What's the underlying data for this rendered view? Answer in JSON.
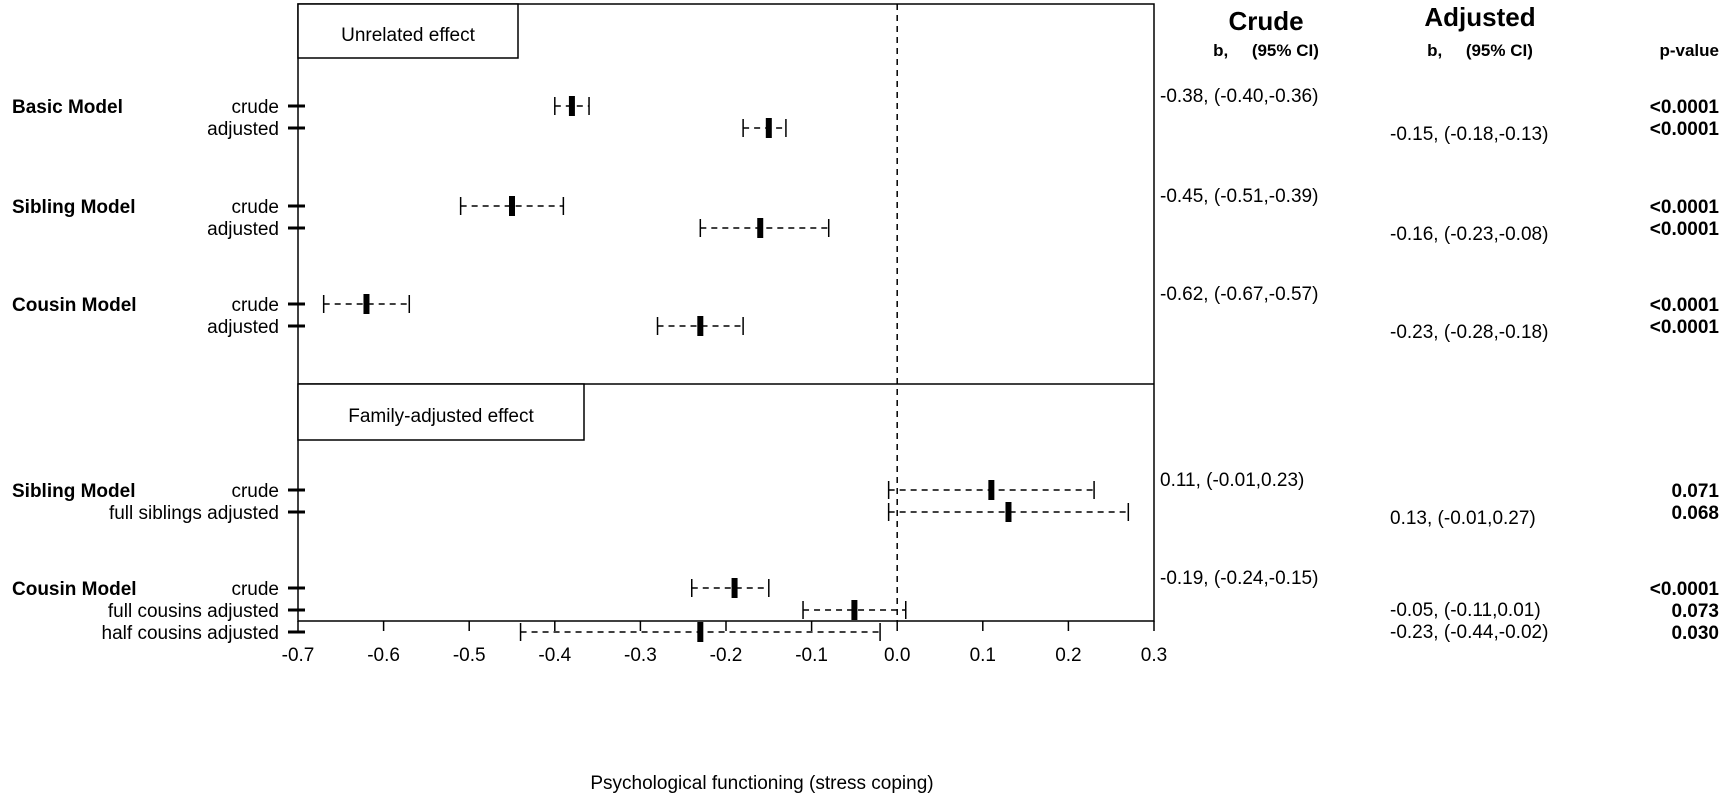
{
  "chart_data": {
    "type": "forest",
    "xlabel": "Psychological functioning (stress coping)",
    "xlim": [
      -0.7,
      0.3
    ],
    "xticks": [
      "-0.7",
      "-0.6",
      "-0.5",
      "-0.4",
      "-0.3",
      "-0.2",
      "-0.1",
      "0.0",
      "0.1",
      "0.2",
      "0.3"
    ],
    "reference_line": 0.0,
    "headers": {
      "crude_title": "Crude",
      "crude_sub": "b,     (95% CI)",
      "adjusted_title": "Adjusted",
      "adjusted_sub": "b,     (95% CI)",
      "pvalue": "p-value"
    },
    "panels": [
      {
        "title": "Unrelated effect",
        "groups": [
          {
            "label": "Basic Model",
            "rows": [
              {
                "label": "crude",
                "est": -0.38,
                "lo": -0.4,
                "hi": -0.36,
                "crude_text": "-0.38, (-0.40,-0.36)",
                "adjusted_text": "",
                "p": "<0.0001"
              },
              {
                "label": "adjusted",
                "est": -0.15,
                "lo": -0.18,
                "hi": -0.13,
                "crude_text": "",
                "adjusted_text": "-0.15, (-0.18,-0.13)",
                "p": "<0.0001"
              }
            ]
          },
          {
            "label": "Sibling Model",
            "rows": [
              {
                "label": "crude",
                "est": -0.45,
                "lo": -0.51,
                "hi": -0.39,
                "crude_text": "-0.45, (-0.51,-0.39)",
                "adjusted_text": "",
                "p": "<0.0001"
              },
              {
                "label": "adjusted",
                "est": -0.16,
                "lo": -0.23,
                "hi": -0.08,
                "crude_text": "",
                "adjusted_text": "-0.16, (-0.23,-0.08)",
                "p": "<0.0001"
              }
            ]
          },
          {
            "label": "Cousin Model",
            "rows": [
              {
                "label": "crude",
                "est": -0.62,
                "lo": -0.67,
                "hi": -0.57,
                "crude_text": "-0.62, (-0.67,-0.57)",
                "adjusted_text": "",
                "p": "<0.0001"
              },
              {
                "label": "adjusted",
                "est": -0.23,
                "lo": -0.28,
                "hi": -0.18,
                "crude_text": "",
                "adjusted_text": "-0.23, (-0.28,-0.18)",
                "p": "<0.0001"
              }
            ]
          }
        ]
      },
      {
        "title": "Family-adjusted effect",
        "groups": [
          {
            "label": "Sibling Model",
            "rows": [
              {
                "label": "crude",
                "est": 0.11,
                "lo": -0.01,
                "hi": 0.23,
                "crude_text": "0.11, (-0.01,0.23)",
                "adjusted_text": "",
                "p": "0.071"
              },
              {
                "label": "full siblings adjusted",
                "est": 0.13,
                "lo": -0.01,
                "hi": 0.27,
                "crude_text": "",
                "adjusted_text": "0.13, (-0.01,0.27)",
                "p": "0.068"
              }
            ]
          },
          {
            "label": "Cousin Model",
            "rows": [
              {
                "label": "crude",
                "est": -0.19,
                "lo": -0.24,
                "hi": -0.15,
                "crude_text": "-0.19, (-0.24,-0.15)",
                "adjusted_text": "",
                "p": "<0.0001"
              },
              {
                "label": "full cousins adjusted",
                "est": -0.05,
                "lo": -0.11,
                "hi": 0.01,
                "crude_text": "",
                "adjusted_text": "-0.05, (-0.11,0.01)",
                "p": "0.073"
              },
              {
                "label": "half cousins adjusted",
                "est": -0.23,
                "lo": -0.44,
                "hi": -0.02,
                "crude_text": "",
                "adjusted_text": "-0.23, (-0.44,-0.02)",
                "p": "0.030"
              }
            ]
          }
        ]
      }
    ]
  }
}
